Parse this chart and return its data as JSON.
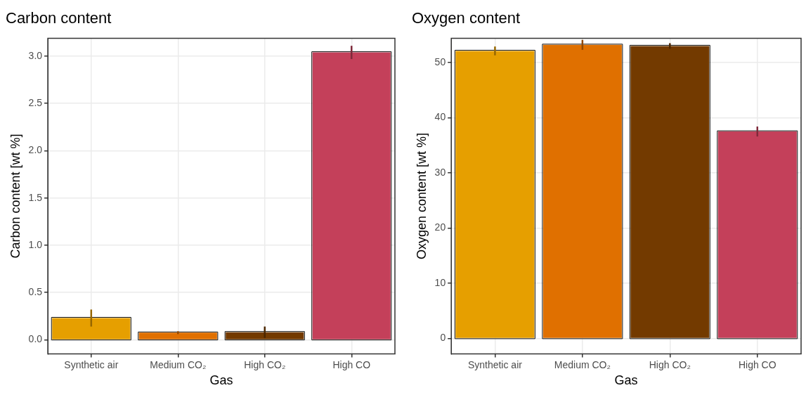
{
  "chart_data": [
    {
      "type": "bar",
      "title": "Carbon content",
      "xlabel": "Gas",
      "ylabel": "Carbon content [wt %]",
      "categories": [
        "Synthetic air",
        "Medium CO₂",
        "High CO₂",
        "High CO"
      ],
      "values": [
        0.23,
        0.075,
        0.08,
        3.04
      ],
      "errors": [
        0.09,
        0.015,
        0.06,
        0.07
      ],
      "colors": [
        "#e69f00",
        "#e07000",
        "#733a00",
        "#c4405a"
      ],
      "ylim": [
        -0.15,
        3.19
      ],
      "yticks": [
        {
          "value": 0,
          "label": "0.0"
        },
        0.5,
        {
          "value": 1,
          "label": "1.0"
        },
        1.5,
        {
          "value": 2,
          "label": "2.0"
        },
        2.5,
        {
          "value": 3,
          "label": "3.0"
        }
      ],
      "grid": true,
      "legend": false
    },
    {
      "type": "bar",
      "title": "Oxygen content",
      "xlabel": "Gas",
      "ylabel": "Oxygen content [wt %]",
      "categories": [
        "Synthetic air",
        "Medium CO₂",
        "High CO₂",
        "High CO"
      ],
      "values": [
        52.1,
        53.2,
        53.0,
        37.5
      ],
      "errors": [
        0.8,
        0.9,
        0.5,
        0.9
      ],
      "colors": [
        "#e69f00",
        "#e07000",
        "#733a00",
        "#c4405a"
      ],
      "ylim": [
        -2.8,
        54.4
      ],
      "yticks": [
        0,
        10,
        20,
        30,
        40,
        50
      ],
      "grid": true,
      "legend": false
    }
  ]
}
